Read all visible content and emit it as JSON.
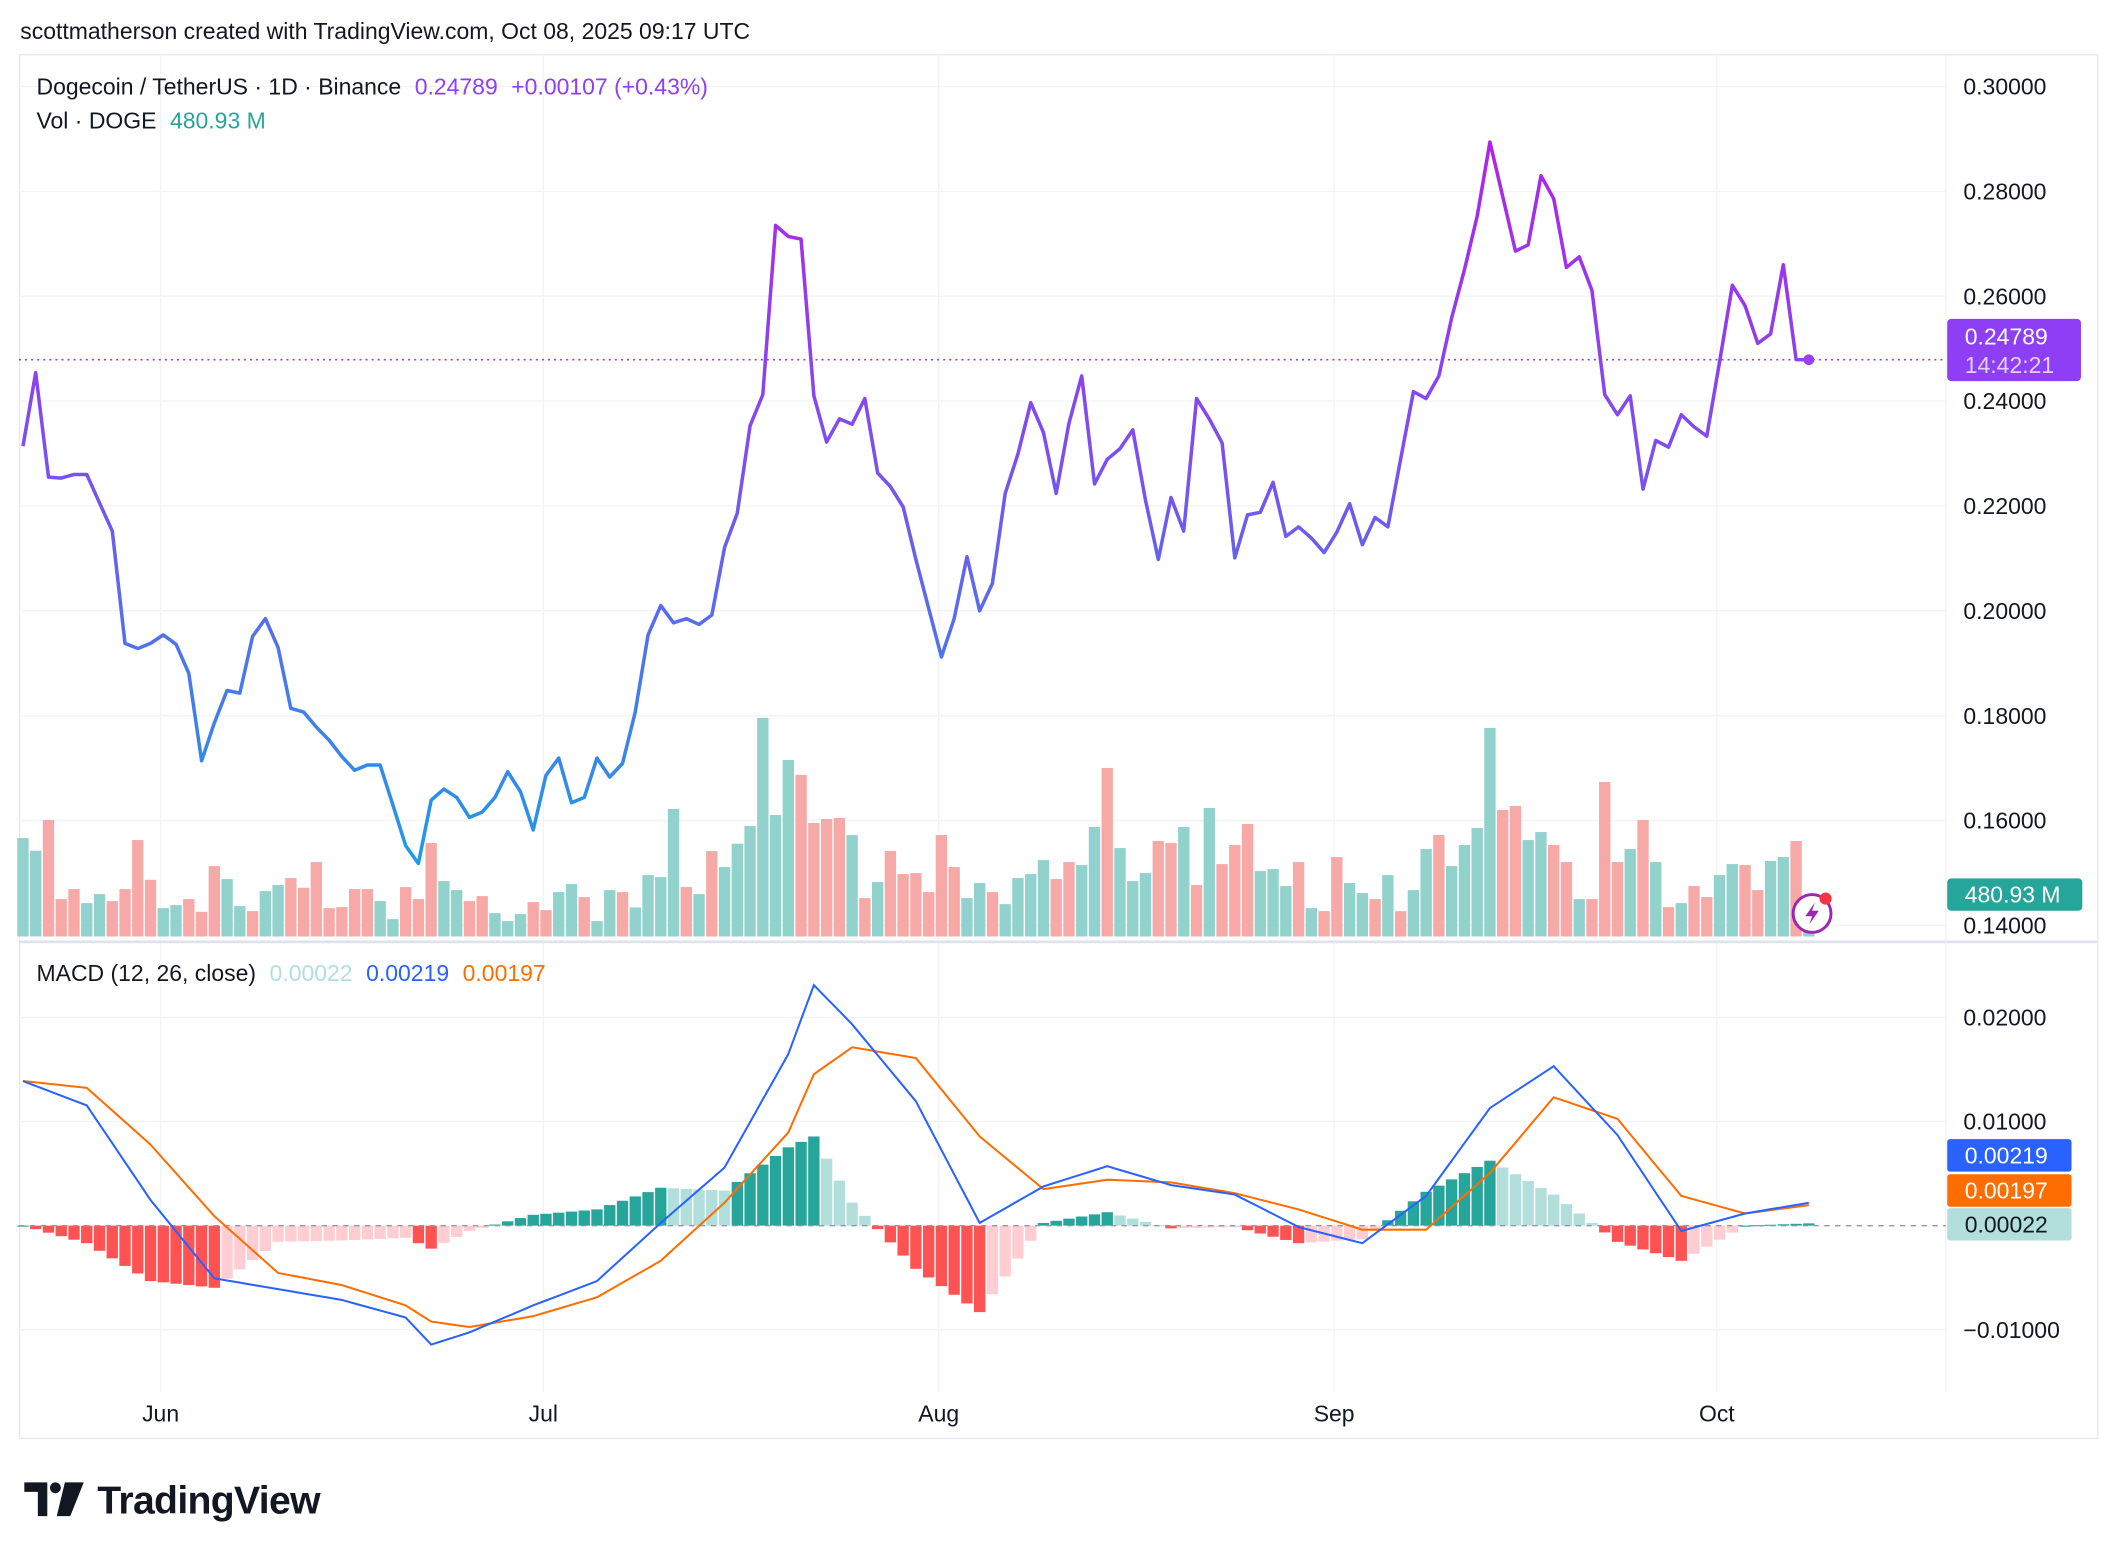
{
  "attribution": "scottmatherson created with TradingView.com, Oct 08, 2025 09:17 UTC",
  "legend": {
    "symbol": "Dogecoin / TetherUS · 1D · Binance",
    "last": "0.24789",
    "change": "+0.00107 (+0.43%)",
    "volume_label": "Vol · DOGE",
    "volume_value": "480.93 M"
  },
  "macd_legend": {
    "label": "MACD (12, 26, close)",
    "histogram": "0.00022",
    "macd": "0.00219",
    "signal": "0.00197"
  },
  "price_badge": {
    "price": "0.24789",
    "countdown": "14:42:21"
  },
  "volume_badge": "480.93 M",
  "macd_badges": {
    "macd": "0.00219",
    "signal": "0.00197",
    "histogram": "0.00022"
  },
  "brand": "TradingView",
  "icons": {
    "logo": "tradingview-logo-icon",
    "alert": "lightning-alert-icon"
  },
  "colors": {
    "price_high": "#b222e8",
    "price_low": "#2196f3",
    "price_badge": "#8e3ff5",
    "up": "#26a69a",
    "down": "#ef5350",
    "volume_up": "#92d2cc",
    "volume_down": "#f7a9a7",
    "macd": "#2962ff",
    "signal": "#ff6d00",
    "hist_up_strong": "#26a69a",
    "hist_up_weak": "#b2dfdb",
    "hist_down_strong": "#ff5252",
    "hist_down_weak": "#ffcdd2"
  },
  "chart_data": [
    {
      "type": "line",
      "title": "Dogecoin / TetherUS · 1D · Binance",
      "interval": "1D",
      "first_date": "2025-05-21",
      "last_date": "2025-10-08",
      "x_ticks": [
        "Jun",
        "Jul",
        "Aug",
        "Sep",
        "Oct"
      ],
      "y_ticks": [
        "0.30000",
        "0.28000",
        "0.26000",
        "0.24000",
        "0.22000",
        "0.20000",
        "0.18000",
        "0.16000",
        "0.14000"
      ],
      "ylim": [
        0.14,
        0.3
      ],
      "grid": true,
      "close": [
        0.2314,
        0.2454,
        0.2255,
        0.2253,
        0.226,
        0.226,
        0.2206,
        0.2152,
        0.1938,
        0.1928,
        0.1938,
        0.1954,
        0.1936,
        0.1881,
        0.1714,
        0.1786,
        0.1848,
        0.1843,
        0.1951,
        0.1985,
        0.193,
        0.1814,
        0.1807,
        0.1778,
        0.1753,
        0.1722,
        0.1696,
        0.1706,
        0.1706,
        0.1629,
        0.1552,
        0.1518,
        0.1639,
        0.166,
        0.1644,
        0.1606,
        0.1616,
        0.1644,
        0.1693,
        0.1655,
        0.1582,
        0.1686,
        0.1719,
        0.1634,
        0.1644,
        0.1719,
        0.1683,
        0.1709,
        0.1807,
        0.1954,
        0.201,
        0.1977,
        0.1985,
        0.1974,
        0.1992,
        0.2121,
        0.2186,
        0.2353,
        0.2412,
        0.2735,
        0.2714,
        0.2709,
        0.241,
        0.2322,
        0.2366,
        0.2356,
        0.2405,
        0.2263,
        0.2237,
        0.2198,
        0.2098,
        0.2005,
        0.1912,
        0.1985,
        0.2103,
        0.2,
        0.2052,
        0.2224,
        0.2299,
        0.2397,
        0.234,
        0.2224,
        0.2358,
        0.2448,
        0.2242,
        0.2289,
        0.2309,
        0.2345,
        0.2211,
        0.2098,
        0.2216,
        0.2152,
        0.2405,
        0.2366,
        0.232,
        0.2101,
        0.2183,
        0.2188,
        0.2245,
        0.2142,
        0.216,
        0.2139,
        0.2111,
        0.215,
        0.2204,
        0.2126,
        0.2178,
        0.216,
        0.2289,
        0.2418,
        0.2405,
        0.2448,
        0.2559,
        0.265,
        0.2753,
        0.2894,
        0.2791,
        0.2686,
        0.2698,
        0.283,
        0.2786,
        0.2655,
        0.2675,
        0.2611,
        0.2412,
        0.2374,
        0.241,
        0.2232,
        0.2325,
        0.2312,
        0.2374,
        0.2351,
        0.2333,
        0.2474,
        0.2621,
        0.2582,
        0.251,
        0.2528,
        0.266,
        0.2479,
        0.24789
      ],
      "last_value": 0.24789
    },
    {
      "type": "bar",
      "title": "Vol · DOGE",
      "unit": "M",
      "values": [
        2360,
        2056,
        2792,
        896,
        1136,
        800,
        1016,
        848,
        1136,
        2312,
        1360,
        680,
        752,
        896,
        592,
        1688,
        1376,
        728,
        608,
        1088,
        1232,
        1400,
        1168,
        1784,
        680,
        704,
        1136,
        1136,
        848,
        416,
        1184,
        896,
        2240,
        1328,
        1112,
        848,
        968,
        560,
        368,
        536,
        824,
        632,
        1064,
        1256,
        944,
        368,
        1112,
        1064,
        696,
        1472,
        1424,
        3056,
        1184,
        1016,
        2048,
        1664,
        2224,
        2648,
        5240,
        2912,
        4232,
        3872,
        2720,
        2816,
        2840,
        2432,
        920,
        1304,
        2048,
        1496,
        1520,
        1064,
        2432,
        1664,
        920,
        1280,
        1064,
        776,
        1400,
        1496,
        1832,
        1376,
        1784,
        1712,
        2624,
        4040,
        2120,
        1328,
        1520,
        2288,
        2240,
        2624,
        1232,
        3080,
        1736,
        2192,
        2696,
        1568,
        1616,
        1208,
        1784,
        680,
        608,
        1904,
        1280,
        1040,
        896,
        1472,
        608,
        1112,
        2096,
        2432,
        1688,
        2192,
        2600,
        5000,
        3032,
        3128,
        2312,
        2504,
        2192,
        1784,
        896,
        896,
        3704,
        1784,
        2096,
        2792,
        1784,
        704,
        800,
        1208,
        944,
        1472,
        1736,
        1712,
        1112,
        1808,
        1904,
        2288,
        480.93
      ],
      "direction": [
        "up",
        "up",
        "down",
        "down",
        "down",
        "up",
        "up",
        "down",
        "down",
        "down",
        "down",
        "up",
        "up",
        "down",
        "down",
        "down",
        "up",
        "up",
        "down",
        "up",
        "up",
        "down",
        "down",
        "down",
        "down",
        "down",
        "down",
        "down",
        "up",
        "up",
        "down",
        "down",
        "down",
        "up",
        "up",
        "down",
        "down",
        "up",
        "up",
        "up",
        "down",
        "down",
        "up",
        "up",
        "down",
        "up",
        "up",
        "down",
        "up",
        "up",
        "up",
        "up",
        "down",
        "up",
        "down",
        "up",
        "up",
        "up",
        "up",
        "up",
        "up",
        "down",
        "down",
        "down",
        "down",
        "up",
        "down",
        "up",
        "down",
        "down",
        "down",
        "down",
        "down",
        "down",
        "up",
        "up",
        "down",
        "up",
        "up",
        "up",
        "up",
        "down",
        "down",
        "up",
        "up",
        "down",
        "up",
        "up",
        "up",
        "down",
        "down",
        "up",
        "down",
        "up",
        "down",
        "down",
        "down",
        "up",
        "up",
        "up",
        "down",
        "up",
        "down",
        "down",
        "up",
        "up",
        "down",
        "up",
        "down",
        "up",
        "up",
        "down",
        "up",
        "up",
        "up",
        "up",
        "down",
        "down",
        "up",
        "up",
        "down",
        "down",
        "up",
        "down",
        "down",
        "down",
        "up",
        "down",
        "up",
        "down",
        "up",
        "down",
        "down",
        "up",
        "up",
        "down",
        "down",
        "up",
        "up",
        "down",
        "up"
      ]
    },
    {
      "type": "line",
      "title": "MACD (12, 26, close)",
      "y_ticks": [
        "0.02000",
        "0.01000",
        "−0.01000"
      ],
      "ylim": [
        -0.0125,
        0.0235
      ],
      "series": [
        {
          "name": "MACD",
          "points": [
            [
              "2025-05-21",
              0.0139
            ],
            [
              "2025-05-26",
              0.01156
            ],
            [
              "2025-05-31",
              0.00247
            ],
            [
              "2025-06-05",
              -0.00506
            ],
            [
              "2025-06-10",
              -0.0061
            ],
            [
              "2025-06-15",
              -0.00714
            ],
            [
              "2025-06-20",
              -0.00883
            ],
            [
              "2025-06-22",
              -0.01143
            ],
            [
              "2025-06-25",
              -0.01026
            ],
            [
              "2025-06-30",
              -0.00766
            ],
            [
              "2025-07-05",
              -0.00532
            ],
            [
              "2025-07-10",
              0.00026
            ],
            [
              "2025-07-15",
              0.00558
            ],
            [
              "2025-07-20",
              0.01649
            ],
            [
              "2025-07-22",
              0.02312
            ],
            [
              "2025-07-25",
              0.01935
            ],
            [
              "2025-07-30",
              0.01195
            ],
            [
              "2025-08-04",
              0.00026
            ],
            [
              "2025-08-09",
              0.00377
            ],
            [
              "2025-08-14",
              0.00571
            ],
            [
              "2025-08-19",
              0.0039
            ],
            [
              "2025-08-24",
              0.00299
            ],
            [
              "2025-08-29",
              -0.00013
            ],
            [
              "2025-09-03",
              -0.00169
            ],
            [
              "2025-09-08",
              0.00286
            ],
            [
              "2025-09-13",
              0.0113
            ],
            [
              "2025-09-18",
              0.01532
            ],
            [
              "2025-09-23",
              0.0087
            ],
            [
              "2025-09-28",
              -0.00052
            ],
            [
              "2025-10-03",
              0.00117
            ],
            [
              "2025-10-08",
              0.00219
            ]
          ]
        },
        {
          "name": "Signal",
          "points": [
            [
              "2025-05-21",
              0.0139
            ],
            [
              "2025-05-26",
              0.01325
            ],
            [
              "2025-05-31",
              0.00779
            ],
            [
              "2025-06-05",
              0.00091
            ],
            [
              "2025-06-10",
              -0.00455
            ],
            [
              "2025-06-15",
              -0.00571
            ],
            [
              "2025-06-20",
              -0.00766
            ],
            [
              "2025-06-22",
              -0.00922
            ],
            [
              "2025-06-25",
              -0.00974
            ],
            [
              "2025-06-30",
              -0.0087
            ],
            [
              "2025-07-05",
              -0.00688
            ],
            [
              "2025-07-10",
              -0.00338
            ],
            [
              "2025-07-15",
              0.00221
            ],
            [
              "2025-07-20",
              0.00896
            ],
            [
              "2025-07-22",
              0.01455
            ],
            [
              "2025-07-25",
              0.01714
            ],
            [
              "2025-07-30",
              0.0161
            ],
            [
              "2025-08-04",
              0.00857
            ],
            [
              "2025-08-09",
              0.00351
            ],
            [
              "2025-08-14",
              0.00442
            ],
            [
              "2025-08-19",
              0.00416
            ],
            [
              "2025-08-24",
              0.00312
            ],
            [
              "2025-08-29",
              0.00156
            ],
            [
              "2025-09-03",
              -0.00039
            ],
            [
              "2025-09-08",
              -0.00039
            ],
            [
              "2025-09-13",
              0.00506
            ],
            [
              "2025-09-18",
              0.01234
            ],
            [
              "2025-09-23",
              0.01026
            ],
            [
              "2025-09-28",
              0.00286
            ],
            [
              "2025-10-03",
              0.00117
            ],
            [
              "2025-10-08",
              0.00197
            ]
          ]
        }
      ],
      "histogram_last": 0.00022
    }
  ]
}
